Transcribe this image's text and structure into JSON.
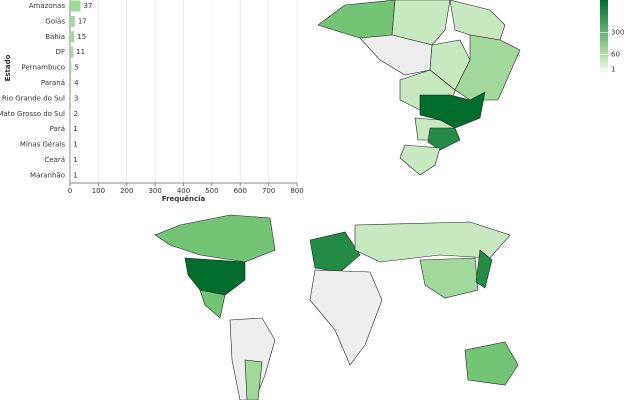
{
  "chart_data": [
    {
      "type": "hbar",
      "x_label": "Frequência",
      "y_label": "Estado",
      "categories": [
        "Amazonas",
        "Goiás",
        "Bahia",
        "DF",
        "Pernambuco",
        "Paraná",
        "Rio Grande do Sul",
        "Mato Grosso do Sul",
        "Pará",
        "Minas Gerais",
        "Ceará",
        "Maranhão"
      ],
      "values": [
        37,
        17,
        15,
        11,
        5,
        4,
        3,
        2,
        1,
        1,
        1,
        1
      ],
      "color": "#a1d99b",
      "xlim": [
        0,
        800
      ],
      "xticks": [
        0,
        100,
        200,
        300,
        400,
        500,
        600,
        700,
        800
      ],
      "grid": true
    },
    {
      "type": "choropleth",
      "scale": "sqrt",
      "clim": [
        0,
        1000
      ],
      "legend_ticks": [
        300,
        60,
        1
      ],
      "colors": [
        "#f7fcf5",
        "#006d2c"
      ]
    }
  ]
}
